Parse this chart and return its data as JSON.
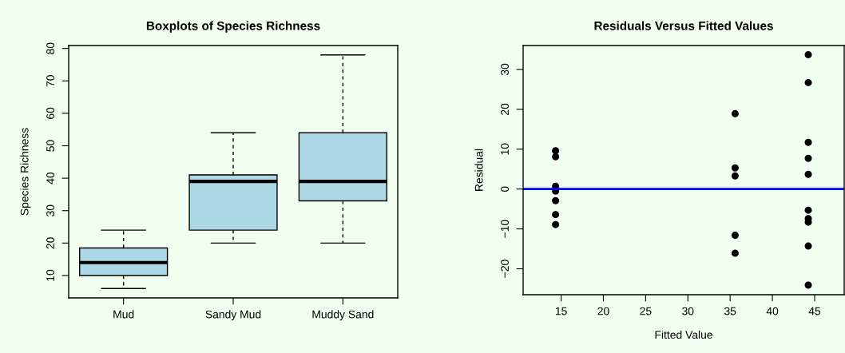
{
  "chart_data": [
    {
      "type": "box",
      "title": "Boxplots of Species Richness",
      "ylabel": "Species Richness",
      "categories": [
        "Mud",
        "Sandy Mud",
        "Muddy Sand"
      ],
      "series": [
        {
          "color": "#add8e6",
          "boxes": [
            {
              "low": 6,
              "q1": 10,
              "median": 14,
              "q3": 18.5,
              "high": 24
            },
            {
              "low": 20,
              "q1": 24,
              "median": 39,
              "q3": 41,
              "high": 54
            },
            {
              "low": 20,
              "q1": 33,
              "median": 39,
              "q3": 54,
              "high": 78
            }
          ]
        }
      ],
      "ylim": [
        3.1,
        80.9
      ],
      "yticks": [
        10,
        20,
        30,
        40,
        50,
        60,
        70,
        80
      ],
      "grid": false
    },
    {
      "type": "scatter",
      "title": "Residuals Versus Fitted Values",
      "xlabel": "Fitted Value",
      "ylabel": "Residual",
      "x": [
        14.34,
        14.34,
        14.34,
        14.34,
        14.34,
        14.34,
        14.34,
        35.59,
        35.59,
        35.59,
        35.59,
        35.59,
        44.25,
        44.25,
        44.25,
        44.25,
        44.25,
        44.25,
        44.25,
        44.25,
        44.25,
        44.25
      ],
      "series": [
        {
          "color": "#000000",
          "values": [
            9.6,
            8.1,
            0.7,
            -0.5,
            -2.9,
            -6.4,
            -8.9,
            18.9,
            5.3,
            3.3,
            -11.6,
            -16.1,
            33.7,
            26.7,
            11.7,
            7.7,
            3.7,
            -5.3,
            -7.4,
            -8.3,
            -14.3,
            -24.1
          ]
        }
      ],
      "marker": "circle",
      "ref_lines": [
        {
          "axis": "y",
          "value": 0,
          "color": "#0000ff"
        }
      ],
      "xlim": [
        10.5,
        48.5
      ],
      "xticks": [
        15,
        20,
        25,
        30,
        35,
        40,
        45
      ],
      "ylim": [
        -26.5,
        36.0
      ],
      "yticks": [
        {
          "value": -20,
          "label": "−20"
        },
        {
          "value": -10,
          "label": "−10"
        },
        0,
        10,
        20,
        30
      ],
      "grid": false
    }
  ]
}
